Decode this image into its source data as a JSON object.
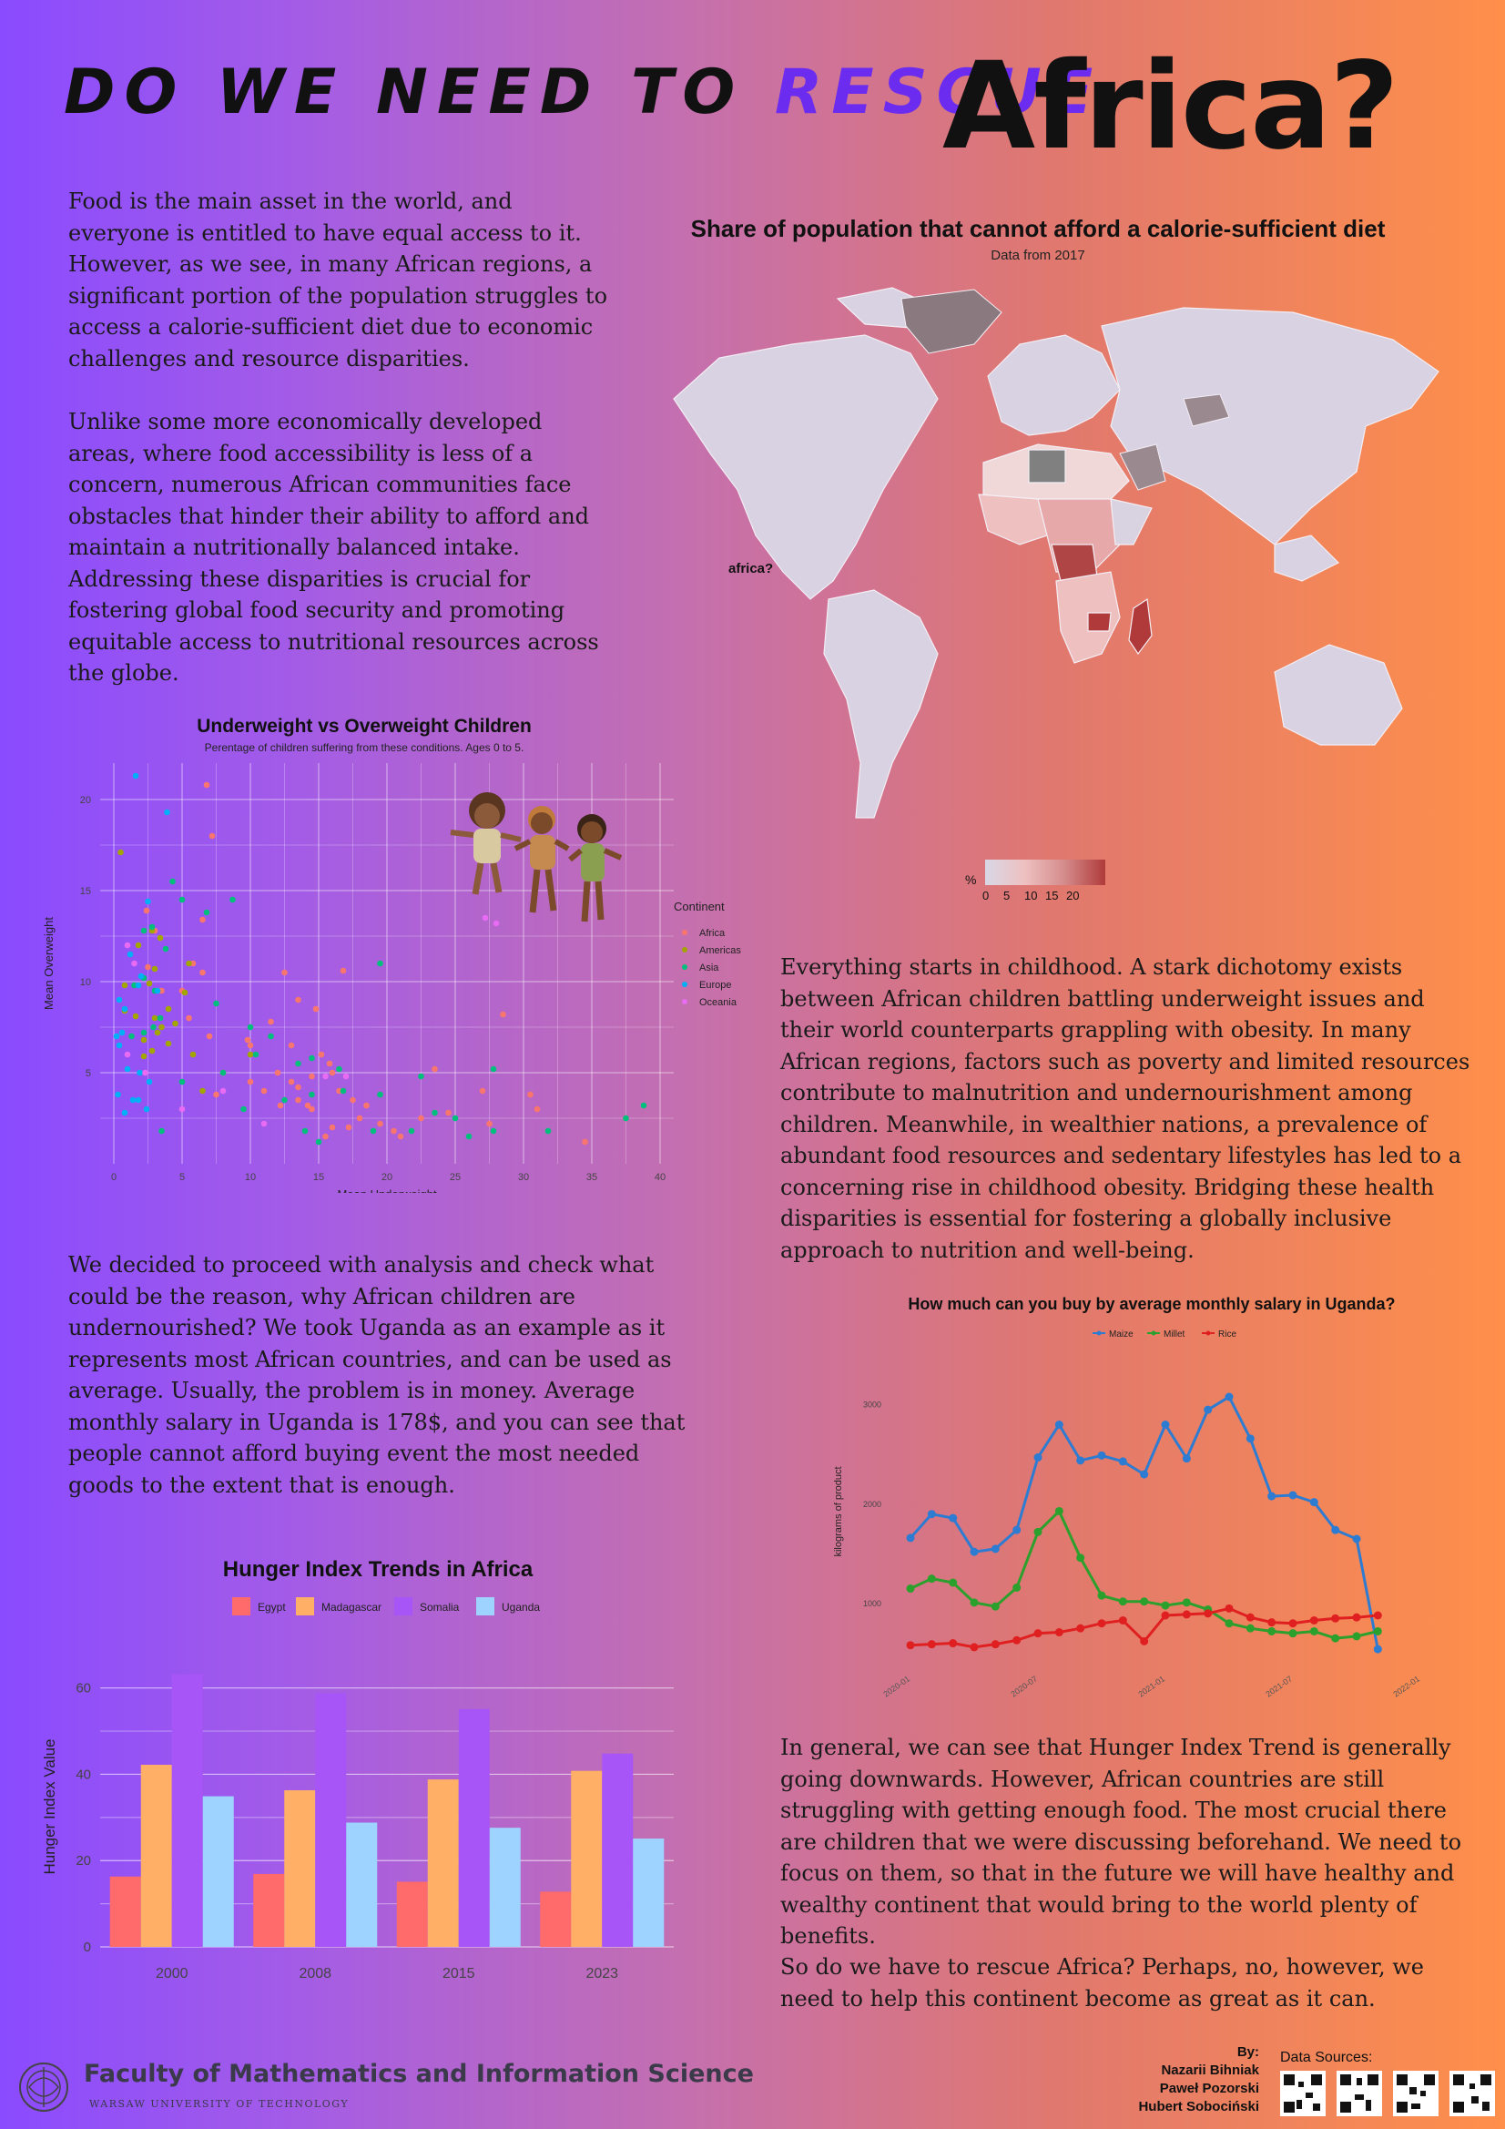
{
  "title": {
    "part1": "DO WE NEED TO ",
    "rescue": "RESCUE",
    "part2": "Africa?"
  },
  "intro_paragraphs": [
    "Food is the main asset in the world, and everyone is entitled to have equal access to it. However, as we see, in many African regions, a significant portion of the population struggles to access a calorie-sufficient diet due to economic challenges and resource disparities.",
    "Unlike some more economically developed areas, where food accessibility is less of a concern, numerous African communities face obstacles that hinder their ability to afford and maintain a nutritionally balanced intake. Addressing these disparities is crucial for fostering global food security and promoting equitable access to nutritional resources across the globe."
  ],
  "map": {
    "title": "Share of population that cannot afford a calorie-sufficient diet",
    "subtitle": "Data from 2017",
    "annotation": "africa?",
    "legend_label": "%",
    "legend_ticks": [
      "0",
      "5",
      "10",
      "15",
      "20"
    ],
    "colors": {
      "low": "#d8d8e6",
      "mid": "#eec0c0",
      "high": "#b03a3a",
      "nodata": "#808080"
    }
  },
  "childhood_paragraph": "Everything starts in childhood. A stark dichotomy exists between African children battling underweight issues and their world counterparts grappling with obesity. In many African regions, factors such as poverty and limited resources contribute to malnutrition and undernourishment among children. Meanwhile, in wealthier  nations, a prevalence of abundant food resources and sedentary lifestyles has led to a concerning rise in childhood obesity. Bridging these health disparities is essential for fostering a globally inclusive approach to nutrition and well-being.",
  "analysis_paragraph": "We decided to proceed with analysis and check what could be the reason, why African children are undernourished? We took Uganda as an example as it represents most African countries, and can be used as average.  Usually, the problem is in money. Average monthly salary in Uganda is 178$, and you can see that people cannot afford buying event the most needed goods to the extent that is enough.",
  "conclusion_paragraphs": [
    "In general, we can see that Hunger Index Trend is generally going downwards. However, African countries are still struggling with getting enough food. The most crucial there are children that we were discussing beforehand. We need to focus on them, so that in the future we will have healthy and wealthy continent that would bring to the world plenty of benefits.",
    "So do we have to rescue Africa? Perhaps, no, however, we need to help this continent become as great as it can."
  ],
  "footer": {
    "faculty": "Faculty of Mathematics and Information Science",
    "university": "WARSAW UNIVERSITY OF TECHNOLOGY",
    "by_label": "By:",
    "authors": [
      "Nazarii Bihniak",
      "Paweł Pozorski",
      "Hubert Sobociński"
    ],
    "sources_label": "Data Sources:"
  },
  "chart_data": [
    {
      "id": "scatter",
      "type": "scatter",
      "title": "Underweight vs Overweight Children",
      "subtitle": "Perentage of children suffering from these conditions. Ages 0 to 5.",
      "xlabel": "Mean Underweight",
      "ylabel": "Mean Overweight",
      "xlim": [
        -1,
        41
      ],
      "ylim": [
        0,
        22
      ],
      "xticks": [
        0,
        5,
        10,
        15,
        20,
        25,
        30,
        35,
        40
      ],
      "yticks": [
        5,
        10,
        15,
        20
      ],
      "grid": true,
      "legend_title": "Continent",
      "legend_position": "right",
      "series": [
        {
          "name": "Africa",
          "color": "#f8766d",
          "points": [
            [
              6.8,
              20.8
            ],
            [
              7.2,
              18
            ],
            [
              3,
              12.8
            ],
            [
              2.4,
              13.9
            ],
            [
              6.5,
              13.4
            ],
            [
              5.8,
              11
            ],
            [
              6.5,
              10.5
            ],
            [
              16.8,
              10.6
            ],
            [
              2.5,
              10.8
            ],
            [
              5,
              9.5
            ],
            [
              3.5,
              9.5
            ],
            [
              13.5,
              9
            ],
            [
              5.5,
              8
            ],
            [
              7,
              7
            ],
            [
              11.5,
              7.8
            ],
            [
              12.5,
              10.5
            ],
            [
              14.8,
              8.5
            ],
            [
              28.5,
              8.2
            ],
            [
              10,
              6.5
            ],
            [
              13,
              6.5
            ],
            [
              15.2,
              6
            ],
            [
              15.8,
              5.5
            ],
            [
              10,
              4.5
            ],
            [
              12,
              5
            ],
            [
              13,
              4.5
            ],
            [
              13.5,
              4.2
            ],
            [
              14.5,
              4.8
            ],
            [
              16,
              5
            ],
            [
              16.5,
              4
            ],
            [
              17.5,
              3.5
            ],
            [
              18.5,
              3.2
            ],
            [
              11,
              4
            ],
            [
              12.2,
              3.2
            ],
            [
              13.5,
              3.5
            ],
            [
              14.5,
              3
            ],
            [
              15.5,
              1.5
            ],
            [
              16,
              2
            ],
            [
              17.2,
              2
            ],
            [
              18,
              2.5
            ],
            [
              19.5,
              2.2
            ],
            [
              20.5,
              1.8
            ],
            [
              21,
              1.5
            ],
            [
              22.5,
              2.5
            ],
            [
              23.5,
              5.2
            ],
            [
              24.5,
              2.8
            ],
            [
              27,
              4
            ],
            [
              27.5,
              2.2
            ],
            [
              30.5,
              3.8
            ],
            [
              31,
              3
            ],
            [
              34.5,
              1.2
            ],
            [
              37.5,
              2.5
            ],
            [
              14.2,
              3.2
            ],
            [
              7.5,
              3.8
            ],
            [
              9.8,
              6.8
            ]
          ]
        },
        {
          "name": "Americas",
          "color": "#a3a500",
          "points": [
            [
              0.5,
              17.1
            ],
            [
              2.8,
              12.8
            ],
            [
              3.4,
              12.4
            ],
            [
              1.8,
              12
            ],
            [
              0.8,
              9.8
            ],
            [
              2.6,
              9.9
            ],
            [
              3,
              10.7
            ],
            [
              4,
              8.5
            ],
            [
              3.5,
              7.5
            ],
            [
              4.5,
              7.7
            ],
            [
              5.2,
              9.4
            ],
            [
              2.2,
              6.8
            ],
            [
              3,
              8
            ],
            [
              0.8,
              8.4
            ],
            [
              1.6,
              8.1
            ],
            [
              2.8,
              6.2
            ],
            [
              2.2,
              5.9
            ],
            [
              4,
              6.6
            ],
            [
              5.8,
              6
            ],
            [
              6.5,
              4
            ],
            [
              8,
              5
            ],
            [
              10,
              6
            ],
            [
              5.5,
              11
            ],
            [
              3.2,
              7.2
            ]
          ]
        },
        {
          "name": "Asia",
          "color": "#00bf7d",
          "points": [
            [
              4.3,
              15.5
            ],
            [
              5,
              14.5
            ],
            [
              8.7,
              14.5
            ],
            [
              6.8,
              13.8
            ],
            [
              2.8,
              13
            ],
            [
              2.2,
              12.8
            ],
            [
              3.8,
              11.8
            ],
            [
              2.2,
              10.2
            ],
            [
              3,
              9.5
            ],
            [
              1.5,
              9.8
            ],
            [
              19.5,
              11
            ],
            [
              7.5,
              8.8
            ],
            [
              10,
              7.5
            ],
            [
              3.4,
              8
            ],
            [
              2.2,
              7.2
            ],
            [
              2.9,
              7.5
            ],
            [
              1.3,
              7
            ],
            [
              11.5,
              7
            ],
            [
              10.4,
              6
            ],
            [
              13.5,
              5.5
            ],
            [
              14.5,
              5.8
            ],
            [
              16.5,
              5.2
            ],
            [
              16.8,
              4
            ],
            [
              12.5,
              3.5
            ],
            [
              14.5,
              3.8
            ],
            [
              19.5,
              3.8
            ],
            [
              22.5,
              4.8
            ],
            [
              27.8,
              5.2
            ],
            [
              5,
              4.5
            ],
            [
              8,
              5
            ],
            [
              3.5,
              1.8
            ],
            [
              9.5,
              3
            ],
            [
              14,
              1.8
            ],
            [
              15,
              1.2
            ],
            [
              19,
              1.8
            ],
            [
              21.8,
              1.8
            ],
            [
              23.5,
              2.8
            ],
            [
              25,
              2.5
            ],
            [
              27.8,
              1.8
            ],
            [
              31.8,
              1.8
            ],
            [
              37.5,
              2.5
            ],
            [
              38.8,
              3.2
            ],
            [
              26,
              1.5
            ]
          ]
        },
        {
          "name": "Europe",
          "color": "#00b0f6",
          "points": [
            [
              1.6,
              21.3
            ],
            [
              3.9,
              19.3
            ],
            [
              2.5,
              14.4
            ],
            [
              0.4,
              9
            ],
            [
              0.8,
              8.5
            ],
            [
              1.2,
              11.5
            ],
            [
              2,
              10.3
            ],
            [
              1.8,
              9.8
            ],
            [
              3.2,
              9.5
            ],
            [
              0.2,
              7
            ],
            [
              0.6,
              7.2
            ],
            [
              0.4,
              6.5
            ],
            [
              1,
              5.2
            ],
            [
              1.4,
              3.5
            ],
            [
              0.3,
              3.8
            ],
            [
              1.8,
              3.5
            ],
            [
              2.6,
              4.5
            ],
            [
              1.9,
              5
            ],
            [
              0.8,
              2.8
            ],
            [
              2.4,
              3
            ]
          ]
        },
        {
          "name": "Oceania",
          "color": "#e76bf3",
          "points": [
            [
              1,
              12
            ],
            [
              1.5,
              11
            ],
            [
              27.2,
              13.5
            ],
            [
              28,
              13.2
            ],
            [
              1,
              6
            ],
            [
              2.3,
              5
            ],
            [
              5,
              3
            ],
            [
              8,
              4
            ],
            [
              11,
              2.2
            ],
            [
              15.5,
              4.8
            ],
            [
              17,
              4.8
            ]
          ]
        }
      ]
    },
    {
      "id": "uganda",
      "type": "line",
      "title": "How much can you buy by average monthly salary in Uganda?",
      "xlabel": "",
      "ylabel": "kilograms of product",
      "ylim": [
        550,
        3300
      ],
      "yticks": [
        1000,
        2000,
        3000
      ],
      "xticks": [
        "2020-01",
        "2020-07",
        "2021-01",
        "2021-07",
        "2022-01"
      ],
      "x": [
        "2020-01",
        "2020-02",
        "2020-03",
        "2020-04",
        "2020-05",
        "2020-06",
        "2020-07",
        "2020-08",
        "2020-09",
        "2020-10",
        "2020-11",
        "2020-12",
        "2021-01",
        "2021-02",
        "2021-03",
        "2021-04",
        "2021-05",
        "2021-06",
        "2021-07",
        "2021-08",
        "2021-09",
        "2021-10",
        "2021-11"
      ],
      "legend_position": "top",
      "series": [
        {
          "name": "Maize",
          "color": "#2e7bd2",
          "values": [
            1660,
            1900,
            1860,
            1520,
            1550,
            1740,
            2470,
            2800,
            2440,
            2490,
            2430,
            2300,
            2800,
            2460,
            2950,
            3080,
            2660,
            2080,
            2090,
            2020,
            1740,
            1650,
            540
          ]
        },
        {
          "name": "Millet",
          "color": "#2ca02c",
          "values": [
            1150,
            1250,
            1210,
            1010,
            970,
            1160,
            1720,
            1930,
            1460,
            1080,
            1020,
            1020,
            980,
            1010,
            940,
            800,
            750,
            720,
            700,
            720,
            650,
            670,
            720
          ]
        },
        {
          "name": "Rice",
          "color": "#e02020",
          "values": [
            580,
            590,
            600,
            560,
            590,
            630,
            700,
            710,
            750,
            800,
            830,
            620,
            880,
            890,
            900,
            950,
            860,
            810,
            800,
            830,
            850,
            860,
            880
          ]
        }
      ]
    },
    {
      "id": "hunger",
      "type": "bar",
      "title": "Hunger Index Trends in Africa",
      "xlabel": "",
      "ylabel": "Hunger Index Value",
      "ylim": [
        0,
        65
      ],
      "yticks": [
        0,
        20,
        40,
        60
      ],
      "categories": [
        "2000",
        "2008",
        "2015",
        "2023"
      ],
      "legend_position": "top",
      "series": [
        {
          "name": "Egypt",
          "color": "#ff6b6b",
          "values": [
            16.3,
            16.9,
            15.1,
            12.8
          ]
        },
        {
          "name": "Madagascar",
          "color": "#ffb066",
          "values": [
            42.2,
            36.3,
            38.8,
            40.8
          ]
        },
        {
          "name": "Somalia",
          "color": "#a855f7",
          "values": [
            63.2,
            58.8,
            55.1,
            44.8
          ]
        },
        {
          "name": "Uganda",
          "color": "#9fd3ff",
          "values": [
            34.9,
            28.8,
            27.6,
            25.1
          ]
        }
      ]
    }
  ]
}
